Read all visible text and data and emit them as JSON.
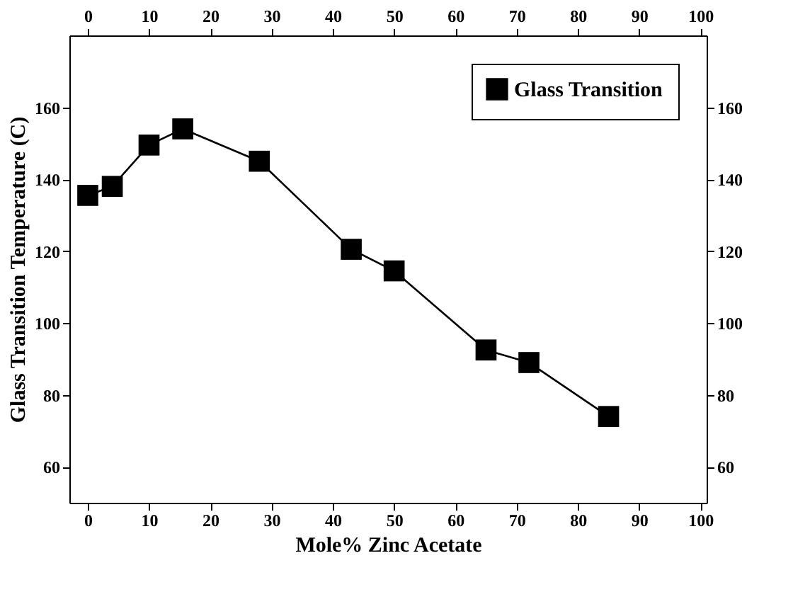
{
  "chart_data": {
    "type": "line",
    "xlabel": "Mole% Zinc Acetate",
    "ylabel": "Glass Transition Temperature (C)",
    "x": [
      0,
      4,
      10,
      15.5,
      28,
      43,
      50,
      65,
      72,
      85
    ],
    "series": [
      {
        "name": "Glass Transition",
        "color": "#000000",
        "values": [
          135.5,
          138,
          149.5,
          154,
          145,
          120.5,
          114.5,
          92.5,
          89,
          74
        ]
      }
    ],
    "xlim": [
      -3,
      101
    ],
    "xticks": [
      0,
      10,
      20,
      30,
      40,
      50,
      60,
      70,
      80,
      90,
      100
    ],
    "x2lim": [
      -3,
      101
    ],
    "x2ticks": [
      0,
      10,
      20,
      30,
      40,
      50,
      60,
      70,
      80,
      90,
      100
    ],
    "ylim": [
      50,
      180
    ],
    "yticks": [
      60,
      80,
      100,
      120,
      140,
      160
    ],
    "y2lim": [
      50,
      180
    ],
    "y2ticks": [
      60,
      80,
      100,
      120,
      140,
      160
    ],
    "marker": "square",
    "line_style": "solid",
    "grid": false,
    "legend": "top right"
  }
}
